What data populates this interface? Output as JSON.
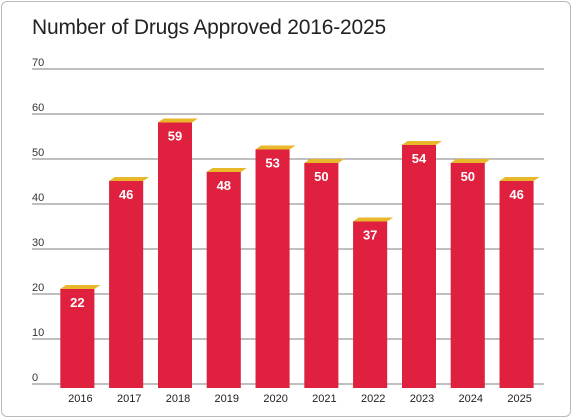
{
  "chart_data": {
    "type": "bar",
    "title": "Number of Drugs Approved 2016-2025",
    "xlabel": "",
    "ylabel": "",
    "categories": [
      "2016",
      "2017",
      "2018",
      "2019",
      "2020",
      "2021",
      "2022",
      "2023",
      "2024",
      "2025"
    ],
    "values": [
      22,
      46,
      59,
      48,
      53,
      50,
      37,
      54,
      50,
      46
    ],
    "data_labels": [
      "22",
      "46",
      "59",
      "48",
      "53",
      "50",
      "37",
      "54",
      "50",
      "46"
    ],
    "ylim": [
      0,
      70
    ],
    "yticks": [
      "0",
      "10",
      "20",
      "30",
      "40",
      "50",
      "60",
      "70"
    ],
    "grid": true,
    "legend": "none",
    "style": "3d-columns",
    "colors": {
      "bar_front": "#e0203f",
      "bar_side": "#6b5a1c",
      "bar_top": "#e8b72a",
      "grid": "#7f7f7f"
    }
  }
}
